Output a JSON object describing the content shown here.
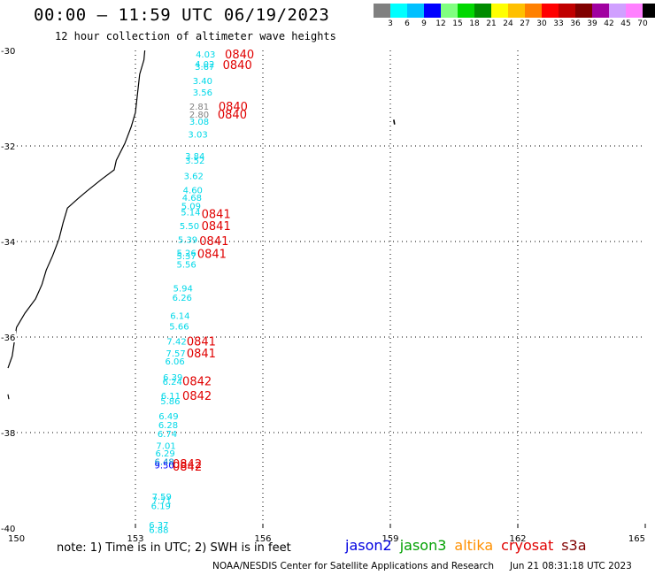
{
  "header": {
    "title": "00:00 – 11:59 UTC 06/19/2023",
    "subtitle": "12 hour collection of altimeter wave heights"
  },
  "legend": {
    "unit": "(ft)",
    "colors": [
      "#808080",
      "#00ffff",
      "#00c0ff",
      "#0000ff",
      "#80ff80",
      "#00d800",
      "#008c00",
      "#ffff00",
      "#ffc000",
      "#ff8000",
      "#ff0000",
      "#c00000",
      "#800000",
      "#a000a0",
      "#d0a0ff",
      "#ff80ff",
      "#000000"
    ],
    "labels": [
      "3",
      "6",
      "9",
      "12",
      "15",
      "18",
      "21",
      "24",
      "27",
      "30",
      "33",
      "36",
      "39",
      "42",
      "45",
      "70"
    ]
  },
  "chart_data": {
    "type": "scatter",
    "title": "00:00 – 11:59 UTC 06/19/2023",
    "subtitle": "12 hour collection of altimeter wave heights",
    "xlabel": "",
    "ylabel": "",
    "xlim": [
      150,
      165
    ],
    "ylim": [
      -40,
      -30
    ],
    "x_ticks": [
      150,
      153,
      156,
      159,
      162,
      165
    ],
    "y_ticks": [
      -30,
      -32,
      -34,
      -36,
      -38,
      -40
    ],
    "x_tick_labels": [
      "150",
      "153",
      "156",
      "159",
      "162",
      "165"
    ],
    "y_tick_labels": [
      "-30",
      "-32",
      "-34",
      "-36",
      "-38",
      "-40"
    ],
    "grid": "dotted",
    "colors": {
      "cyan": "#00d8e8",
      "gray": "#808080",
      "blue": "#0000ff",
      "teal": "#0099d0",
      "time": "#e00000"
    },
    "swh_points": [
      {
        "lon": 154.65,
        "lat": -30.07,
        "value": "4.03",
        "color": "cyan"
      },
      {
        "lon": 154.63,
        "lat": -30.28,
        "value": "4.02",
        "color": "cyan"
      },
      {
        "lon": 154.63,
        "lat": -30.33,
        "value": "3.67",
        "color": "cyan"
      },
      {
        "lon": 154.58,
        "lat": -30.63,
        "value": "3.40",
        "color": "cyan"
      },
      {
        "lon": 154.58,
        "lat": -30.87,
        "value": "3.56",
        "color": "cyan"
      },
      {
        "lon": 154.5,
        "lat": -31.17,
        "value": "2.81",
        "color": "gray"
      },
      {
        "lon": 154.5,
        "lat": -31.33,
        "value": "2.80",
        "color": "gray"
      },
      {
        "lon": 154.5,
        "lat": -31.48,
        "value": "3.08",
        "color": "cyan"
      },
      {
        "lon": 154.47,
        "lat": -31.75,
        "value": "3.03",
        "color": "cyan"
      },
      {
        "lon": 154.4,
        "lat": -32.2,
        "value": "3.84",
        "color": "cyan"
      },
      {
        "lon": 154.4,
        "lat": -32.3,
        "value": "3.52",
        "color": "cyan"
      },
      {
        "lon": 154.37,
        "lat": -32.62,
        "value": "3.62",
        "color": "cyan"
      },
      {
        "lon": 154.35,
        "lat": -32.92,
        "value": "4.60",
        "color": "cyan"
      },
      {
        "lon": 154.33,
        "lat": -33.07,
        "value": "4.68",
        "color": "cyan"
      },
      {
        "lon": 154.31,
        "lat": -33.25,
        "value": "5.09",
        "color": "cyan"
      },
      {
        "lon": 154.3,
        "lat": -33.38,
        "value": "5.14",
        "color": "cyan"
      },
      {
        "lon": 154.27,
        "lat": -33.67,
        "value": "5.50",
        "color": "cyan"
      },
      {
        "lon": 154.23,
        "lat": -33.95,
        "value": "5.39",
        "color": "cyan"
      },
      {
        "lon": 154.2,
        "lat": -34.23,
        "value": "5.26",
        "color": "cyan"
      },
      {
        "lon": 154.2,
        "lat": -34.3,
        "value": "5.37",
        "color": "cyan"
      },
      {
        "lon": 154.2,
        "lat": -34.47,
        "value": "5.56",
        "color": "cyan"
      },
      {
        "lon": 154.12,
        "lat": -34.97,
        "value": "5.94",
        "color": "cyan"
      },
      {
        "lon": 154.1,
        "lat": -35.17,
        "value": "6.26",
        "color": "cyan"
      },
      {
        "lon": 154.05,
        "lat": -35.55,
        "value": "6.14",
        "color": "cyan"
      },
      {
        "lon": 154.03,
        "lat": -35.77,
        "value": "5.66",
        "color": "cyan"
      },
      {
        "lon": 153.97,
        "lat": -36.08,
        "value": "7.42",
        "color": "cyan"
      },
      {
        "lon": 153.95,
        "lat": -36.33,
        "value": "7.57",
        "color": "cyan"
      },
      {
        "lon": 153.93,
        "lat": -36.5,
        "value": "6.06",
        "color": "cyan"
      },
      {
        "lon": 153.88,
        "lat": -36.83,
        "value": "6.39",
        "color": "cyan"
      },
      {
        "lon": 153.87,
        "lat": -36.93,
        "value": "6.24",
        "color": "cyan"
      },
      {
        "lon": 153.83,
        "lat": -37.22,
        "value": "6.11",
        "color": "cyan"
      },
      {
        "lon": 153.82,
        "lat": -37.33,
        "value": "5.86",
        "color": "cyan"
      },
      {
        "lon": 153.78,
        "lat": -37.65,
        "value": "6.49",
        "color": "cyan"
      },
      {
        "lon": 153.77,
        "lat": -37.83,
        "value": "6.28",
        "color": "cyan"
      },
      {
        "lon": 153.75,
        "lat": -38.02,
        "value": "6.74",
        "color": "cyan"
      },
      {
        "lon": 153.72,
        "lat": -38.27,
        "value": "7.01",
        "color": "cyan"
      },
      {
        "lon": 153.7,
        "lat": -38.43,
        "value": "6.29",
        "color": "cyan"
      },
      {
        "lon": 153.68,
        "lat": -38.6,
        "value": "6.48",
        "color": "teal"
      },
      {
        "lon": 153.68,
        "lat": -38.68,
        "value": "9.50",
        "color": "blue"
      },
      {
        "lon": 153.62,
        "lat": -39.33,
        "value": "7.59",
        "color": "cyan"
      },
      {
        "lon": 153.62,
        "lat": -39.42,
        "value": "7.71",
        "color": "cyan"
      },
      {
        "lon": 153.6,
        "lat": -39.53,
        "value": "6.19",
        "color": "cyan"
      },
      {
        "lon": 153.55,
        "lat": -39.93,
        "value": "6.37",
        "color": "cyan"
      },
      {
        "lon": 153.55,
        "lat": -40.03,
        "value": "6.88",
        "color": "cyan"
      }
    ],
    "time_labels": [
      {
        "lon": 155.45,
        "lat": -30.07,
        "text": "0840"
      },
      {
        "lon": 155.4,
        "lat": -30.3,
        "text": "0840"
      },
      {
        "lon": 155.3,
        "lat": -31.17,
        "text": "0840"
      },
      {
        "lon": 155.28,
        "lat": -31.33,
        "text": "0840"
      },
      {
        "lon": 154.9,
        "lat": -33.42,
        "text": "0841"
      },
      {
        "lon": 154.9,
        "lat": -33.67,
        "text": "0841"
      },
      {
        "lon": 154.85,
        "lat": -33.98,
        "text": "0841"
      },
      {
        "lon": 154.8,
        "lat": -34.25,
        "text": "0841"
      },
      {
        "lon": 154.55,
        "lat": -36.08,
        "text": "0841"
      },
      {
        "lon": 154.55,
        "lat": -36.33,
        "text": "0841"
      },
      {
        "lon": 154.45,
        "lat": -36.92,
        "text": "0842"
      },
      {
        "lon": 154.45,
        "lat": -37.22,
        "text": "0842"
      },
      {
        "lon": 154.22,
        "lat": -38.65,
        "text": "0842"
      },
      {
        "lon": 154.22,
        "lat": -38.7,
        "text": "0842"
      }
    ]
  },
  "footer": {
    "note": "note:  1)  Time is in UTC;  2)  SWH is in feet",
    "satellites": [
      {
        "name": "jason2",
        "color": "#0000e0"
      },
      {
        "name": "jason3",
        "color": "#00a000"
      },
      {
        "name": "altika",
        "color": "#ff9000"
      },
      {
        "name": "cryosat",
        "color": "#e00000"
      },
      {
        "name": "s3a",
        "color": "#800000"
      }
    ],
    "credit": "NOAA/NESDIS Center for Satellite Applications and Research",
    "timestamp": "Jun 21 08:31:18 UTC 2023"
  }
}
